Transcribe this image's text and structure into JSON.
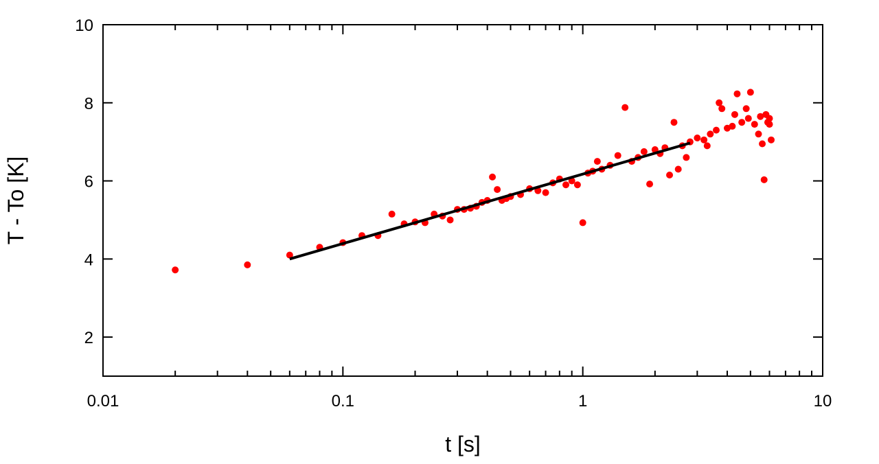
{
  "chart_data": {
    "type": "scatter",
    "x_label": "t [s]",
    "y_label": "T - To  [K]",
    "xscale": "log",
    "xlim": [
      0.01,
      10
    ],
    "xticks": [
      0.01,
      0.1,
      1,
      10
    ],
    "xminorticks": [
      0.02,
      0.03,
      0.04,
      0.05,
      0.06,
      0.07,
      0.08,
      0.09,
      0.2,
      0.3,
      0.4,
      0.5,
      0.6,
      0.7,
      0.8,
      0.9,
      2,
      3,
      4,
      5,
      6,
      7,
      8,
      9
    ],
    "ylim": [
      1,
      10
    ],
    "yticks": [
      2,
      4,
      6,
      8,
      10
    ],
    "series": [
      {
        "type": "scatter",
        "color": "#ff0000",
        "x": [
          0.02,
          0.04,
          0.06,
          0.08,
          0.1,
          0.12,
          0.14,
          0.16,
          0.18,
          0.2,
          0.22,
          0.24,
          0.26,
          0.28,
          0.3,
          0.32,
          0.34,
          0.36,
          0.38,
          0.4,
          0.42,
          0.44,
          0.46,
          0.48,
          0.5,
          0.55,
          0.6,
          0.65,
          0.7,
          0.75,
          0.8,
          0.85,
          0.9,
          0.95,
          1.0,
          1.05,
          1.1,
          1.15,
          1.2,
          1.3,
          1.4,
          1.5,
          1.6,
          1.7,
          1.8,
          1.9,
          2.0,
          2.1,
          2.2,
          2.3,
          2.4,
          2.5,
          2.6,
          2.7,
          2.8,
          3.0,
          3.2,
          3.4,
          3.6,
          3.7,
          3.8,
          4.0,
          4.2,
          4.4,
          4.6,
          4.8,
          5.0,
          5.2,
          5.4,
          5.6,
          5.7,
          5.8,
          5.9,
          6.0,
          6.1,
          3.3,
          4.3,
          4.9,
          5.5,
          6.0
        ],
        "values": [
          3.72,
          3.85,
          4.1,
          4.3,
          4.42,
          4.6,
          4.6,
          5.15,
          4.9,
          4.95,
          4.93,
          5.15,
          5.1,
          5.0,
          5.27,
          5.27,
          5.3,
          5.35,
          5.45,
          5.5,
          6.1,
          5.78,
          5.5,
          5.55,
          5.6,
          5.65,
          5.8,
          5.75,
          5.7,
          5.95,
          6.05,
          5.9,
          6.0,
          5.9,
          4.93,
          6.2,
          6.25,
          6.5,
          6.3,
          6.4,
          6.65,
          7.88,
          6.5,
          6.6,
          6.75,
          5.92,
          6.8,
          6.7,
          6.85,
          6.15,
          7.5,
          6.3,
          6.9,
          6.6,
          7.0,
          7.1,
          7.05,
          7.2,
          7.3,
          8.0,
          7.85,
          7.35,
          7.4,
          8.23,
          7.5,
          7.85,
          8.27,
          7.45,
          7.2,
          6.95,
          6.03,
          7.7,
          7.5,
          7.6,
          7.05,
          6.9,
          7.7,
          7.6,
          7.65,
          7.45
        ]
      },
      {
        "type": "line",
        "color": "#000000",
        "x": [
          0.06,
          2.8
        ],
        "values": [
          4.0,
          6.97
        ]
      }
    ]
  }
}
